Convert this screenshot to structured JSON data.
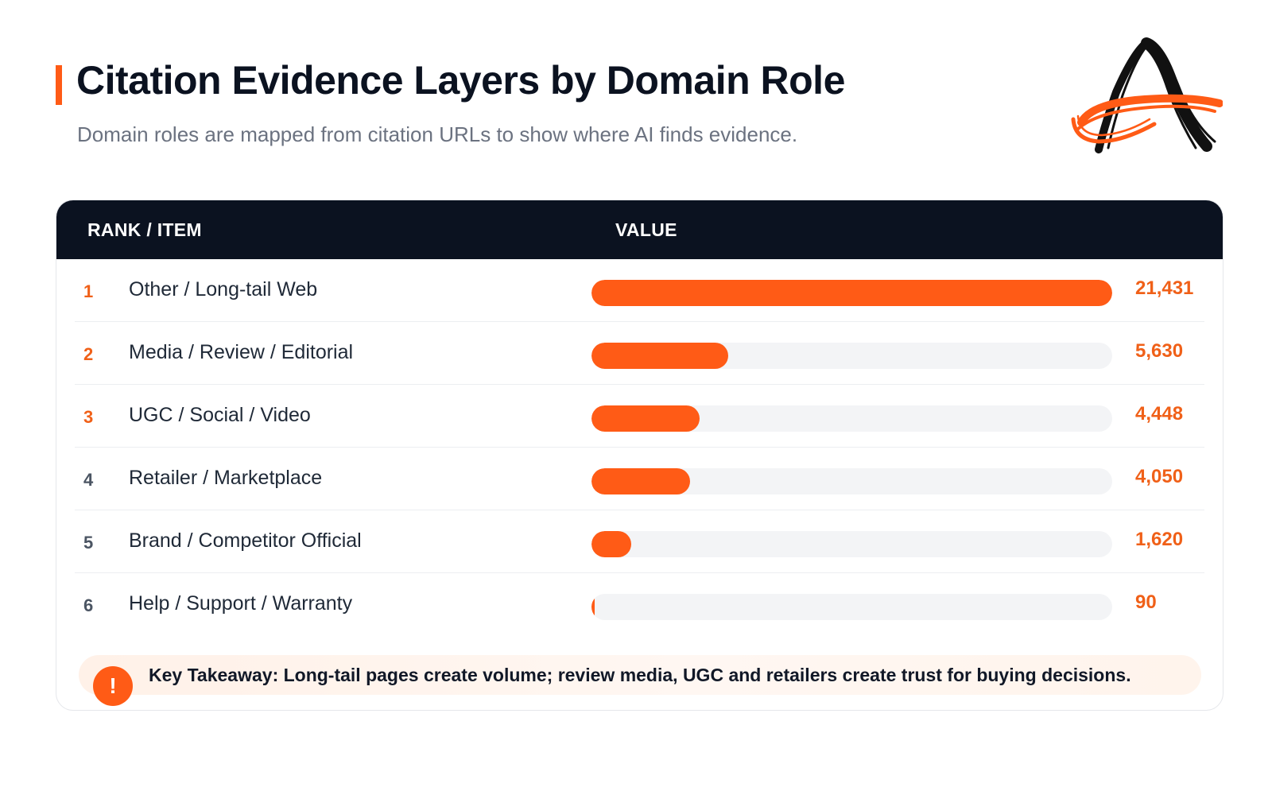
{
  "header": {
    "title": "Citation Evidence Layers by Domain Role",
    "subtitle": "Domain roles are mapped from citation URLs to show where AI finds evidence.",
    "logo_icon": "brand-a-logo-icon"
  },
  "colors": {
    "accent": "#ff5b16",
    "header_bg": "#0b1220",
    "track": "#f3f4f6",
    "rank_top": "#f06018",
    "rank_other": "#4b5563"
  },
  "table": {
    "col_rank": "RANK / ITEM",
    "col_value": "VALUE"
  },
  "chart_data": {
    "type": "bar",
    "orientation": "horizontal",
    "title": "Citation Evidence Layers by Domain Role",
    "subtitle": "Domain roles are mapped from citation URLs to show where AI finds evidence.",
    "xlim": [
      0,
      21431
    ],
    "rows": [
      {
        "rank": "1",
        "label": "Other / Long-tail Web",
        "value": 21431,
        "display": "21,431"
      },
      {
        "rank": "2",
        "label": "Media / Review / Editorial",
        "value": 5630,
        "display": "5,630"
      },
      {
        "rank": "3",
        "label": "UGC / Social / Video",
        "value": 4448,
        "display": "4,448"
      },
      {
        "rank": "4",
        "label": "Retailer / Marketplace",
        "value": 4050,
        "display": "4,050"
      },
      {
        "rank": "5",
        "label": "Brand / Competitor Official",
        "value": 1620,
        "display": "1,620"
      },
      {
        "rank": "6",
        "label": "Help / Support / Warranty",
        "value": 90,
        "display": "90"
      }
    ]
  },
  "takeaway": {
    "icon": "exclamation-icon",
    "glyph": "!",
    "text": "Key Takeaway: Long-tail pages create volume; review media, UGC and retailers create trust for buying decisions."
  }
}
